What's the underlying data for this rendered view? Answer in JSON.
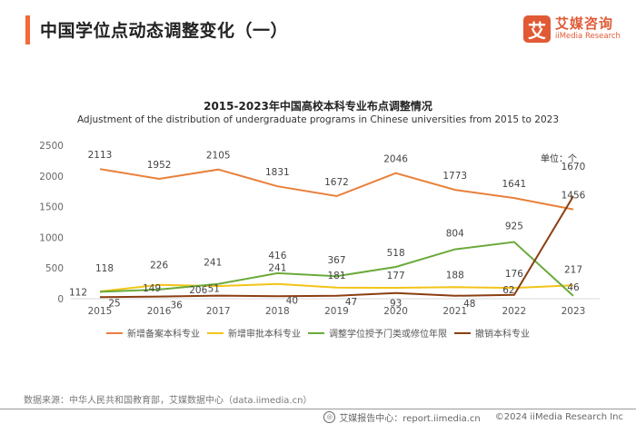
{
  "header": {
    "title": "中国学位点动态调整变化（一）",
    "logo": {
      "mark": "艾",
      "name_cn": "艾媒咨询",
      "name_en": "iiMedia Research"
    }
  },
  "unit_label": "单位：个",
  "source": "数据来源：中华人民共和国教育部，艾媒数据中心（data.iimedia.cn）",
  "footer": {
    "icon": "globe-icon",
    "report_center": "艾媒报告中心：report.iimedia.cn",
    "copyright": "©2024  iiMedia Research  Inc"
  },
  "colors": {
    "accent": "#f26a3a",
    "brand": "#e05a35"
  },
  "chart_data": {
    "type": "line",
    "title": "2015-2023年中国高校本科专业布点调整情况",
    "subtitle": "Adjustment of the distribution of undergraduate programs in Chinese universities from 2015 to 2023",
    "xlabel": "",
    "ylabel": "",
    "unit": "个",
    "ylim": [
      0,
      2500
    ],
    "yticks": [
      0,
      500,
      1000,
      1500,
      2000,
      2500
    ],
    "grid": false,
    "legend_position": "bottom",
    "categories": [
      "2015",
      "2016",
      "2017",
      "2018",
      "2019",
      "2020",
      "2021",
      "2022",
      "2023"
    ],
    "series": [
      {
        "name": "新增备案本科专业",
        "color": "#e8803a",
        "values": [
          2113,
          1952,
          2105,
          1831,
          1672,
          2046,
          1773,
          1641,
          1456
        ]
      },
      {
        "name": "新增审批本科专业",
        "color": "#f2c418",
        "values": [
          118,
          226,
          206,
          241,
          181,
          177,
          188,
          176,
          217
        ]
      },
      {
        "name": "调整学位授予门类或修位年限",
        "color": "#6aaa3a",
        "values": [
          112,
          149,
          241,
          416,
          367,
          518,
          804,
          925,
          46
        ]
      },
      {
        "name": "撤销本科专业",
        "color": "#8b3e12",
        "values": [
          25,
          36,
          51,
          40,
          47,
          93,
          48,
          62,
          1670
        ]
      }
    ]
  }
}
